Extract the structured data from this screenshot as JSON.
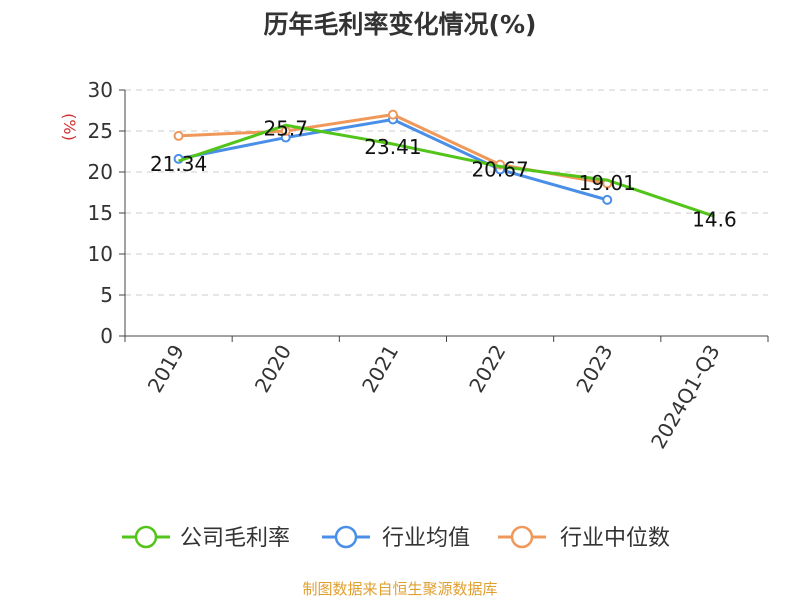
{
  "chart_data": {
    "type": "line",
    "title": "历年毛利率变化情况(%)",
    "ylabel": "(%)",
    "xlabel": "",
    "ylim": [
      0,
      30
    ],
    "yticks": [
      0,
      5,
      10,
      15,
      20,
      25,
      30
    ],
    "grid": true,
    "legend_position": "bottom",
    "categories": [
      "2019",
      "2020",
      "2021",
      "2022",
      "2023",
      "2024Q1-Q3"
    ],
    "series": [
      {
        "name": "公司毛利率",
        "color": "#52c41a",
        "values": [
          21.34,
          25.7,
          23.41,
          20.67,
          19.01,
          14.6
        ],
        "labels": [
          "21.34",
          "25.7",
          "23.41",
          "20.67",
          "19.01",
          "14.6"
        ]
      },
      {
        "name": "行业均值",
        "color": "#4a8fe7",
        "values": [
          21.6,
          24.2,
          26.4,
          20.3,
          16.6,
          null
        ]
      },
      {
        "name": "行业中位数",
        "color": "#f0985a",
        "values": [
          24.4,
          25.0,
          27.0,
          20.9,
          18.6,
          null
        ]
      }
    ]
  },
  "footer": "制图数据来自恒生聚源数据库"
}
